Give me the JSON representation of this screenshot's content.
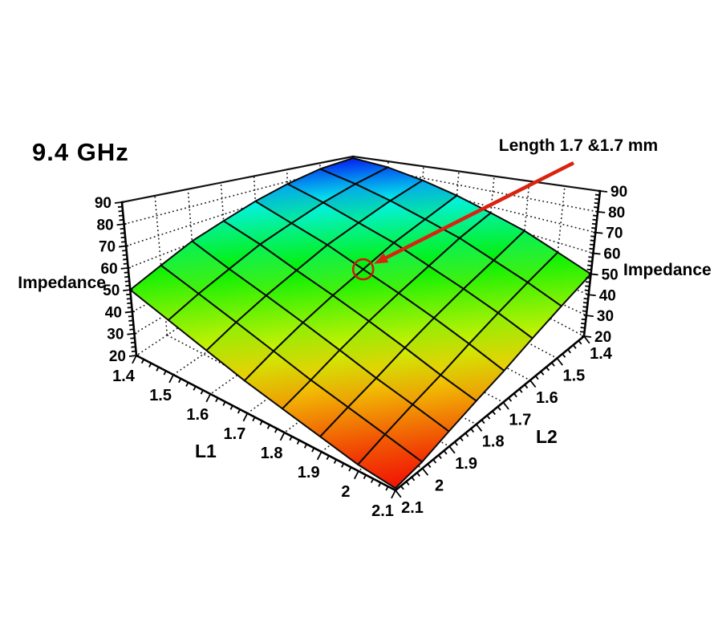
{
  "title": "9.4 GHz",
  "annotation": {
    "label": "Length 1.7 &1.7 mm"
  },
  "axes": {
    "z_left_label": "Impedance",
    "z_right_label": "Impedance",
    "x_label": "L1",
    "y_label": "L2",
    "z_ticks": [
      "20",
      "30",
      "40",
      "50",
      "60",
      "70",
      "80",
      "90"
    ],
    "x_ticks": [
      "1.4",
      "1.5",
      "1.6",
      "1.7",
      "1.8",
      "1.9",
      "2",
      "2.1"
    ],
    "y_ticks": [
      "1.4",
      "1.5",
      "1.6",
      "1.7",
      "1.8",
      "1.9",
      "2",
      "2.1"
    ]
  },
  "chart_data": {
    "type": "surface",
    "title": "9.4 GHz",
    "xlabel": "L1",
    "ylabel": "L2",
    "zlabel": "Impedance",
    "x": [
      1.4,
      1.5,
      1.6,
      1.7,
      1.8,
      1.9,
      2.0,
      2.1
    ],
    "y": [
      1.4,
      1.5,
      1.6,
      1.7,
      1.8,
      1.9,
      2.0,
      2.1
    ],
    "xlim": [
      1.4,
      2.1
    ],
    "ylim": [
      1.4,
      2.1
    ],
    "zlim": [
      20,
      90
    ],
    "z_tick_values": [
      20,
      30,
      40,
      50,
      60,
      70,
      80,
      90
    ],
    "z": [
      [
        88,
        84,
        78,
        72,
        66,
        61,
        55,
        50
      ],
      [
        84,
        78,
        72,
        66,
        61,
        55,
        50,
        45
      ],
      [
        78,
        72,
        66,
        61,
        55,
        50,
        45,
        40
      ],
      [
        72,
        66,
        61,
        55,
        50,
        45,
        40,
        35
      ],
      [
        66,
        61,
        55,
        50,
        45,
        40,
        35,
        31
      ],
      [
        61,
        55,
        50,
        45,
        40,
        35,
        31,
        27
      ],
      [
        55,
        50,
        45,
        40,
        35,
        31,
        27,
        23
      ],
      [
        50,
        45,
        40,
        35,
        31,
        27,
        23,
        21
      ]
    ],
    "colormap": "rainbow: blue at impedance 90 down to red at impedance 20",
    "grid": true,
    "legend_position": "none",
    "annotation": {
      "text": "Length 1.7 &1.7 mm",
      "x": 1.7,
      "y": 1.7,
      "z": 55
    }
  },
  "colors": {
    "arrow": "#d9230f",
    "annotation_circle": "#cc1a0a",
    "surface_stroke": "#0a0a0a",
    "frame": "#111111",
    "grid_dots": "#1a1a1a",
    "background": "#ffffff",
    "high_blue": "#1a2fd4",
    "low_red": "#e93311"
  }
}
